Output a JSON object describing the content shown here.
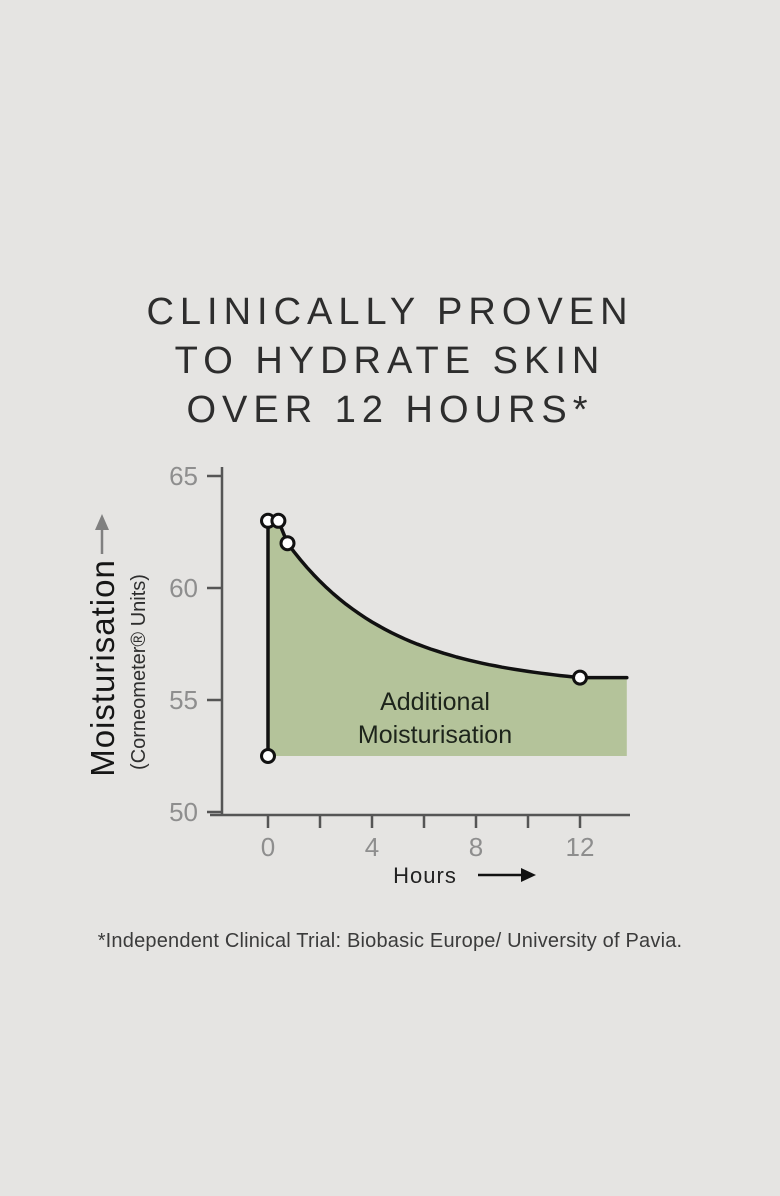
{
  "page": {
    "title": "CLINICALLY PROVEN\nTO HYDRATE SKIN\nOVER 12 HOURS*",
    "footnote": "*Independent Clinical Trial: Biobasic Europe/ University of Pavia."
  },
  "colors": {
    "background": "#e5e4e2",
    "area_fill": "#b4c39a",
    "curve": "#111111",
    "axis": "#555555",
    "tick_label": "#8e8e8e",
    "title_text": "#2d2d2d",
    "footnote_text": "#3b3b3b",
    "area_label_text": "#1d241b",
    "marker_fill": "#ffffff",
    "axis_label_text": "#222222",
    "y_axis_label_text": "#161616",
    "y_arrow": "#808080"
  },
  "chart_data": {
    "type": "area",
    "title": "",
    "xlabel": "Hours",
    "ylabel": "Moisturisation",
    "ylabel_units": "(Corneometer® Units)",
    "area_label": "Additional\nMoisturisation",
    "xlim": [
      -2.2,
      14.2
    ],
    "ylim": [
      50,
      65
    ],
    "grid": false,
    "y_ticks": [
      50,
      55,
      60,
      65
    ],
    "x_ticks_labeled": [
      0,
      4,
      8,
      12
    ],
    "x_ticks_minor": [
      2,
      6,
      10
    ],
    "baseline_value": 52.5,
    "points": [
      [
        0,
        52.5
      ],
      [
        0,
        63
      ],
      [
        0.4,
        63
      ],
      [
        0.75,
        62
      ],
      [
        12,
        56
      ]
    ],
    "curve_flat_end_x": 13.8
  }
}
